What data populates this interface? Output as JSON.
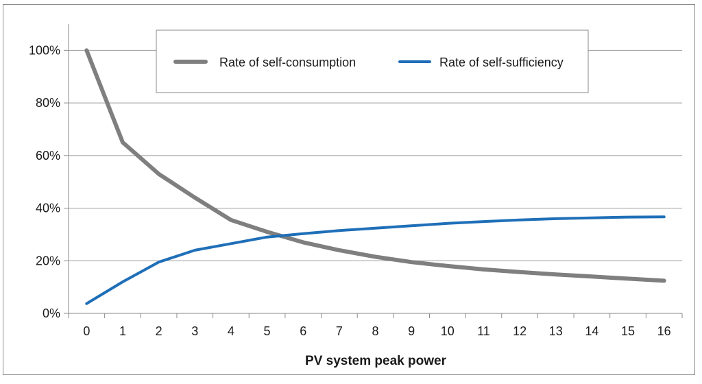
{
  "chart_data": {
    "type": "line",
    "xlabel": "PV system peak power",
    "ylabel": "",
    "categories": [
      "0",
      "1",
      "2",
      "3",
      "4",
      "5",
      "6",
      "7",
      "8",
      "9",
      "10",
      "11",
      "12",
      "13",
      "14",
      "15",
      "16"
    ],
    "y_tick_labels": [
      "0%",
      "20%",
      "40%",
      "60%",
      "80%",
      "100%"
    ],
    "ylim": [
      0,
      1.1
    ],
    "grid": "horizontal",
    "legend_position": "top",
    "series": [
      {
        "name": "Rate of self-consumption",
        "color": "#7f7f7f",
        "values": [
          1.0,
          0.65,
          0.53,
          0.44,
          0.355,
          0.31,
          0.27,
          0.24,
          0.215,
          0.195,
          0.18,
          0.167,
          0.157,
          0.148,
          0.14,
          0.132,
          0.124
        ]
      },
      {
        "name": "Rate of self-sufficiency",
        "color": "#1f6fb8",
        "values": [
          0.037,
          0.12,
          0.195,
          0.24,
          0.265,
          0.29,
          0.303,
          0.315,
          0.324,
          0.333,
          0.342,
          0.349,
          0.355,
          0.36,
          0.363,
          0.366,
          0.367
        ]
      }
    ]
  }
}
